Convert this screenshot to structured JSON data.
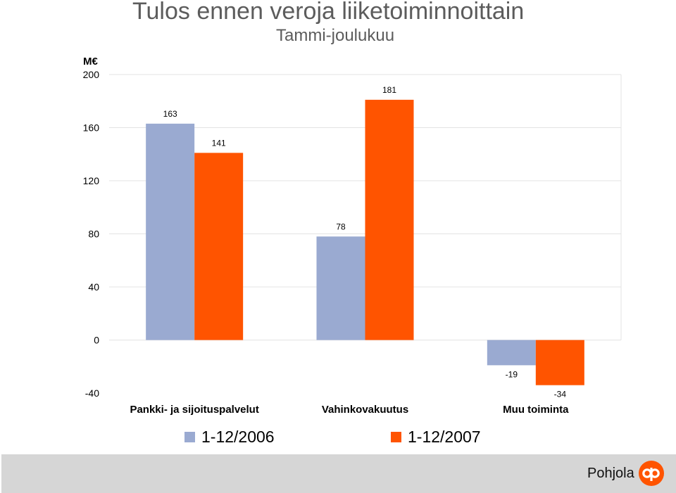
{
  "chart_data": {
    "type": "bar",
    "title": "Tulos ennen veroja liiketoiminnoittain",
    "subtitle": "Tammi-joulukuu",
    "ylabel": "M€",
    "ylim": [
      -40,
      200
    ],
    "yticks": [
      -40,
      0,
      40,
      80,
      120,
      160,
      200
    ],
    "grid": true,
    "legend_position": "bottom",
    "categories": [
      "Pankki- ja sijoituspalvelut",
      "Vahinkovakuutus",
      "Muu toiminta"
    ],
    "series": [
      {
        "name": "1-12/2006",
        "color": "#9aaad1",
        "values": [
          163,
          78,
          -19
        ]
      },
      {
        "name": "1-12/2007",
        "color": "#ff5400",
        "values": [
          141,
          181,
          -34
        ]
      }
    ]
  },
  "footer": {
    "brand": "Pohjola",
    "background": "#d6d6d6",
    "logo_icon": "op-logo-icon",
    "logo_color": "#ff5400"
  }
}
